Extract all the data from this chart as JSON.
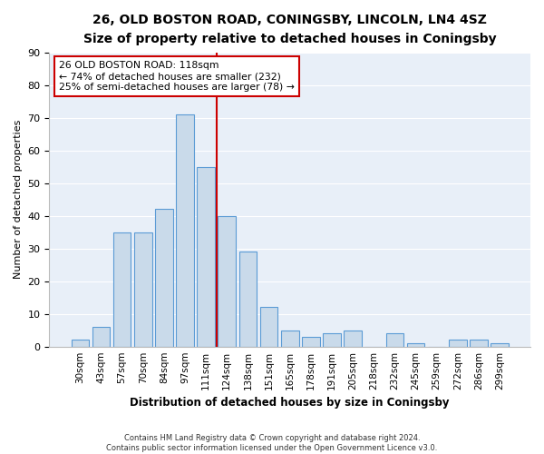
{
  "title": "26, OLD BOSTON ROAD, CONINGSBY, LINCOLN, LN4 4SZ",
  "subtitle": "Size of property relative to detached houses in Coningsby",
  "xlabel": "Distribution of detached houses by size in Coningsby",
  "ylabel": "Number of detached properties",
  "categories": [
    "30sqm",
    "43sqm",
    "57sqm",
    "70sqm",
    "84sqm",
    "97sqm",
    "111sqm",
    "124sqm",
    "138sqm",
    "151sqm",
    "165sqm",
    "178sqm",
    "191sqm",
    "205sqm",
    "218sqm",
    "232sqm",
    "245sqm",
    "259sqm",
    "272sqm",
    "286sqm",
    "299sqm"
  ],
  "values": [
    2,
    6,
    35,
    35,
    42,
    71,
    55,
    40,
    29,
    12,
    5,
    3,
    4,
    5,
    0,
    4,
    1,
    0,
    2,
    2,
    1
  ],
  "bar_color": "#c9daea",
  "bar_edge_color": "#5b9bd5",
  "annotation_line1": "26 OLD BOSTON ROAD: 118sqm",
  "annotation_line2": "← 74% of detached houses are smaller (232)",
  "annotation_line3": "25% of semi-detached houses are larger (78) →",
  "annotation_box_color": "#ffffff",
  "annotation_box_edge": "#cc0000",
  "vline_color": "#cc0000",
  "ylim": [
    0,
    90
  ],
  "yticks": [
    0,
    10,
    20,
    30,
    40,
    50,
    60,
    70,
    80,
    90
  ],
  "background_color": "#e8eff8",
  "grid_color": "#ffffff",
  "footer_line1": "Contains HM Land Registry data © Crown copyright and database right 2024.",
  "footer_line2": "Contains public sector information licensed under the Open Government Licence v3.0.",
  "title_fontsize": 10,
  "subtitle_fontsize": 9,
  "bar_width": 0.85
}
